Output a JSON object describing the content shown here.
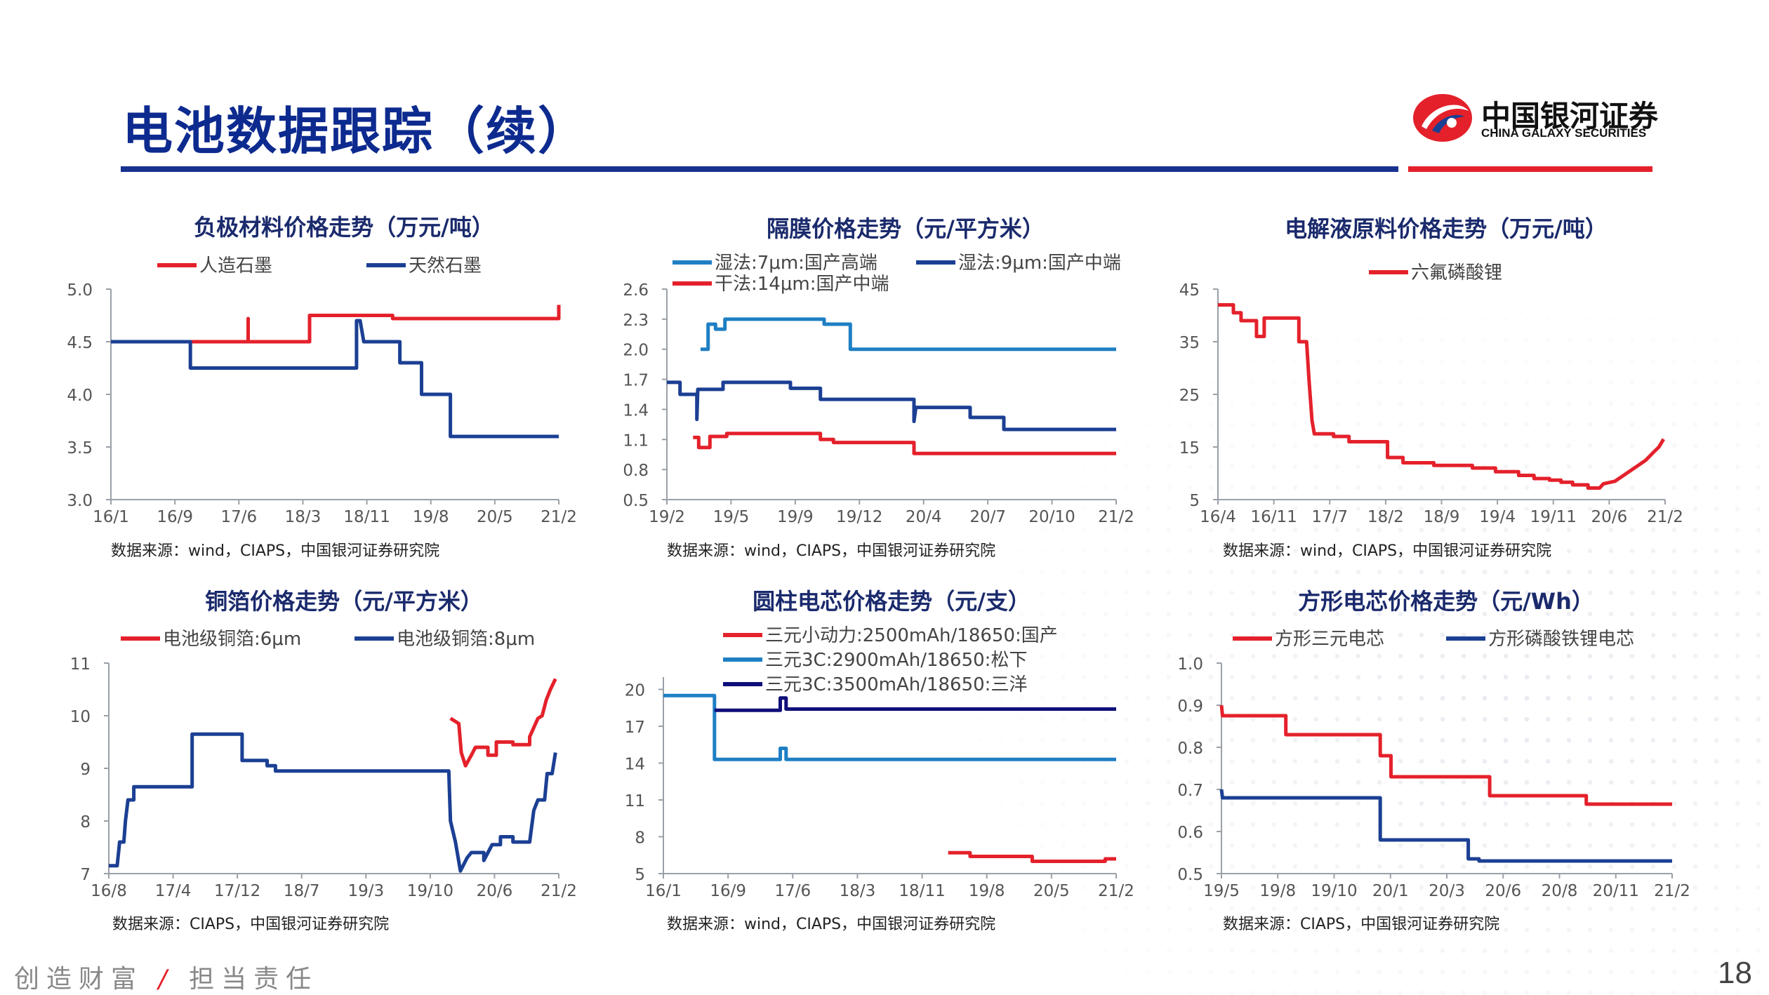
{
  "header": {
    "title": "电池数据跟踪（续）",
    "logo_cn": "中国银河证券",
    "logo_en": "CHINA GALAXY SECURITIES"
  },
  "footer": {
    "slogan_left": "创造财富",
    "slogan_sep": "/",
    "slogan_right": "担当责任",
    "page_number": "18"
  },
  "colors": {
    "red": "#e4212b",
    "darkblue": "#1b3f93",
    "lightblue": "#1e7fc4",
    "navy": "#0f0f7a",
    "brand_blue": "#17318f"
  },
  "chart_data": [
    {
      "id": "anode",
      "type": "line",
      "title": "负极材料价格走势（万元/吨）",
      "source": "数据来源：wind，CIAPS，中国银河证券研究院",
      "x_ticks": [
        "16/1",
        "16/9",
        "17/6",
        "18/3",
        "18/11",
        "19/8",
        "20/5",
        "21/2"
      ],
      "y_ticks": [
        "3.0",
        "3.5",
        "4.0",
        "4.5",
        "5.0"
      ],
      "ylim": [
        3.0,
        5.0
      ],
      "xlim": [
        0,
        62
      ],
      "series": [
        {
          "name": "人造石墨",
          "color": "#e4212b",
          "points": [
            [
              7,
              4.5
            ],
            [
              19,
              4.5
            ],
            [
              19,
              4.72
            ],
            [
              19,
              4.5
            ],
            [
              27.5,
              4.5
            ],
            [
              27.5,
              4.75
            ],
            [
              39,
              4.75
            ],
            [
              39,
              4.72
            ],
            [
              62,
              4.72
            ],
            [
              62,
              4.85
            ]
          ]
        },
        {
          "name": "天然石墨",
          "color": "#1b3f93",
          "points": [
            [
              0,
              4.5
            ],
            [
              11,
              4.5
            ],
            [
              11,
              4.25
            ],
            [
              34,
              4.25
            ],
            [
              34,
              4.7
            ],
            [
              34.5,
              4.7
            ],
            [
              35,
              4.5
            ],
            [
              40,
              4.5
            ],
            [
              40,
              4.3
            ],
            [
              43,
              4.3
            ],
            [
              43,
              4.0
            ],
            [
              47,
              4.0
            ],
            [
              47,
              3.6
            ],
            [
              62,
              3.6
            ]
          ]
        }
      ]
    },
    {
      "id": "separator",
      "type": "line",
      "title": "隔膜价格走势（元/平方米）",
      "source": "数据来源：wind，CIAPS，中国银河证券研究院",
      "x_ticks": [
        "19/2",
        "19/5",
        "19/9",
        "19/12",
        "20/4",
        "20/7",
        "20/10",
        "21/2"
      ],
      "y_ticks": [
        "0.5",
        "0.8",
        "1.1",
        "1.4",
        "1.7",
        "2.0",
        "2.3",
        "2.6"
      ],
      "ylim": [
        0.5,
        2.6
      ],
      "xlim": [
        0,
        24
      ],
      "series": [
        {
          "name": "湿法:7μm:国产高端",
          "color": "#1e7fc4",
          "points": [
            [
              1.8,
              2.0
            ],
            [
              2.2,
              2.0
            ],
            [
              2.2,
              2.25
            ],
            [
              2.6,
              2.25
            ],
            [
              2.6,
              2.2
            ],
            [
              3.1,
              2.2
            ],
            [
              3.1,
              2.3
            ],
            [
              8.4,
              2.3
            ],
            [
              8.4,
              2.25
            ],
            [
              9.8,
              2.25
            ],
            [
              9.8,
              2.0
            ],
            [
              24,
              2.0
            ]
          ]
        },
        {
          "name": "湿法:9μm:国产中端",
          "color": "#1b3f93",
          "points": [
            [
              0,
              1.67
            ],
            [
              0.7,
              1.67
            ],
            [
              0.7,
              1.55
            ],
            [
              1.6,
              1.55
            ],
            [
              1.6,
              1.3
            ],
            [
              1.65,
              1.6
            ],
            [
              3,
              1.6
            ],
            [
              3,
              1.67
            ],
            [
              6.6,
              1.67
            ],
            [
              6.6,
              1.61
            ],
            [
              8.2,
              1.61
            ],
            [
              8.2,
              1.5
            ],
            [
              13.2,
              1.5
            ],
            [
              13.2,
              1.28
            ],
            [
              13.3,
              1.42
            ],
            [
              16.2,
              1.42
            ],
            [
              16.2,
              1.32
            ],
            [
              18,
              1.32
            ],
            [
              18,
              1.2
            ],
            [
              24,
              1.2
            ]
          ]
        },
        {
          "name": "干法:14μm:国产中端",
          "color": "#e4212b",
          "points": [
            [
              1.4,
              1.12
            ],
            [
              1.7,
              1.12
            ],
            [
              1.7,
              1.02
            ],
            [
              2.3,
              1.02
            ],
            [
              2.3,
              1.13
            ],
            [
              3.2,
              1.13
            ],
            [
              3.2,
              1.16
            ],
            [
              8.2,
              1.16
            ],
            [
              8.2,
              1.1
            ],
            [
              8.9,
              1.1
            ],
            [
              8.9,
              1.07
            ],
            [
              13.2,
              1.07
            ],
            [
              13.2,
              0.96
            ],
            [
              24,
              0.96
            ]
          ]
        }
      ]
    },
    {
      "id": "electrolyte",
      "type": "line",
      "title": "电解液原料价格走势（万元/吨）",
      "source": "数据来源：wind，CIAPS，中国银河证券研究院",
      "x_ticks": [
        "16/4",
        "16/11",
        "17/7",
        "18/2",
        "18/9",
        "19/4",
        "19/11",
        "20/6",
        "21/2"
      ],
      "y_ticks": [
        "5",
        "15",
        "25",
        "35",
        "45"
      ],
      "ylim": [
        5,
        45
      ],
      "xlim": [
        0,
        58
      ],
      "series": [
        {
          "name": "六氟磷酸锂",
          "color": "#e4212b",
          "points": [
            [
              0,
              42
            ],
            [
              2,
              42
            ],
            [
              2,
              40.5
            ],
            [
              3,
              40.5
            ],
            [
              3,
              39
            ],
            [
              5,
              39
            ],
            [
              5,
              36
            ],
            [
              6,
              36
            ],
            [
              6,
              39.5
            ],
            [
              10.5,
              39.5
            ],
            [
              10.5,
              35
            ],
            [
              11.5,
              35
            ],
            [
              11.8,
              28
            ],
            [
              12.2,
              20
            ],
            [
              12.5,
              17.5
            ],
            [
              15,
              17.5
            ],
            [
              15,
              17
            ],
            [
              17,
              17
            ],
            [
              17,
              16
            ],
            [
              22,
              16
            ],
            [
              22,
              13
            ],
            [
              24,
              13
            ],
            [
              24,
              12
            ],
            [
              28,
              12
            ],
            [
              28,
              11.5
            ],
            [
              33,
              11.5
            ],
            [
              33,
              11
            ],
            [
              36,
              11
            ],
            [
              36,
              10.3
            ],
            [
              39,
              10.3
            ],
            [
              39,
              9.6
            ],
            [
              41,
              9.6
            ],
            [
              41,
              9
            ],
            [
              43,
              9
            ],
            [
              43,
              8.7
            ],
            [
              44.5,
              8.7
            ],
            [
              44.5,
              8.3
            ],
            [
              46,
              8.3
            ],
            [
              46,
              7.8
            ],
            [
              48,
              7.8
            ],
            [
              48,
              7.2
            ],
            [
              49.5,
              7.2
            ],
            [
              50,
              8
            ],
            [
              51.5,
              8.5
            ],
            [
              52.5,
              9.5
            ],
            [
              53.5,
              10.5
            ],
            [
              54.5,
              11.5
            ],
            [
              55.5,
              12.5
            ],
            [
              56.5,
              14
            ],
            [
              57.2,
              15
            ],
            [
              57.8,
              16.5
            ]
          ]
        }
      ]
    },
    {
      "id": "copper_foil",
      "type": "line",
      "title": "铜箔价格走势（元/平方米）",
      "source": "数据来源：CIAPS，中国银河证券研究院",
      "x_ticks": [
        "16/8",
        "17/4",
        "17/12",
        "18/7",
        "19/3",
        "19/10",
        "20/6",
        "21/2"
      ],
      "y_ticks": [
        "7",
        "8",
        "9",
        "10",
        "11"
      ],
      "ylim": [
        7,
        11
      ],
      "xlim": [
        0,
        54
      ],
      "series": [
        {
          "name": "电池级铜箔:6μm",
          "color": "#e4212b",
          "points": [
            [
              41,
              9.95
            ],
            [
              42,
              9.85
            ],
            [
              42.3,
              9.3
            ],
            [
              42.8,
              9.05
            ],
            [
              43.5,
              9.25
            ],
            [
              44,
              9.4
            ],
            [
              45.5,
              9.4
            ],
            [
              45.5,
              9.25
            ],
            [
              46.5,
              9.25
            ],
            [
              46.5,
              9.5
            ],
            [
              48.5,
              9.5
            ],
            [
              48.5,
              9.45
            ],
            [
              50.5,
              9.45
            ],
            [
              50.5,
              9.6
            ],
            [
              51.5,
              9.95
            ],
            [
              52,
              10.0
            ],
            [
              52.5,
              10.3
            ],
            [
              53,
              10.5
            ],
            [
              53.6,
              10.7
            ]
          ]
        },
        {
          "name": "电池级铜箔:8μm",
          "color": "#1b3f93",
          "points": [
            [
              0,
              7.15
            ],
            [
              1,
              7.15
            ],
            [
              1.3,
              7.6
            ],
            [
              1.8,
              7.6
            ],
            [
              2,
              8.0
            ],
            [
              2.3,
              8.4
            ],
            [
              3,
              8.4
            ],
            [
              3,
              8.65
            ],
            [
              10,
              8.65
            ],
            [
              10,
              9.65
            ],
            [
              16,
              9.65
            ],
            [
              16,
              9.15
            ],
            [
              19,
              9.15
            ],
            [
              19,
              9.05
            ],
            [
              20,
              9.05
            ],
            [
              20,
              8.95
            ],
            [
              36,
              8.95
            ],
            [
              36,
              8.95
            ],
            [
              40.8,
              8.95
            ],
            [
              41,
              8.0
            ],
            [
              41.6,
              7.6
            ],
            [
              42.2,
              7.05
            ],
            [
              43,
              7.3
            ],
            [
              43.5,
              7.4
            ],
            [
              45,
              7.4
            ],
            [
              45,
              7.25
            ],
            [
              46,
              7.55
            ],
            [
              47,
              7.55
            ],
            [
              47,
              7.7
            ],
            [
              48.5,
              7.7
            ],
            [
              48.5,
              7.6
            ],
            [
              50.5,
              7.6
            ],
            [
              51,
              8.2
            ],
            [
              51.5,
              8.4
            ],
            [
              52.3,
              8.4
            ],
            [
              52.6,
              8.9
            ],
            [
              53.2,
              8.9
            ],
            [
              53.6,
              9.3
            ]
          ]
        }
      ]
    },
    {
      "id": "cylindrical_cell",
      "type": "line",
      "title": "圆柱电芯价格走势（元/支）",
      "source": "数据来源：wind，CIAPS，中国银河证券研究院",
      "x_ticks": [
        "16/1",
        "16/9",
        "17/6",
        "18/3",
        "18/11",
        "19/8",
        "20/5",
        "21/2"
      ],
      "y_ticks": [
        "5",
        "8",
        "11",
        "14",
        "17",
        "20"
      ],
      "ylim": [
        5,
        21
      ],
      "xlim": [
        0,
        62
      ],
      "series": [
        {
          "name": "三元小动力:2500mAh/18650:国产",
          "color": "#e4212b",
          "points": [
            [
              39,
              6.7
            ],
            [
              42,
              6.7
            ],
            [
              42,
              6.4
            ],
            [
              50.5,
              6.4
            ],
            [
              50.5,
              6.0
            ],
            [
              60.5,
              6.0
            ],
            [
              60.5,
              6.2
            ],
            [
              62,
              6.2
            ]
          ]
        },
        {
          "name": "三元3C:2900mAh/18650:松下",
          "color": "#1e7fc4",
          "points": [
            [
              0,
              19.5
            ],
            [
              7,
              19.5
            ],
            [
              7,
              14.3
            ],
            [
              16,
              14.3
            ],
            [
              16,
              15.2
            ],
            [
              16.8,
              15.2
            ],
            [
              16.8,
              14.3
            ],
            [
              62,
              14.3
            ]
          ]
        },
        {
          "name": "三元3C:3500mAh/18650:三洋",
          "color": "#0f0f7a",
          "points": [
            [
              7,
              18.3
            ],
            [
              16,
              18.3
            ],
            [
              16,
              19.3
            ],
            [
              16.8,
              19.3
            ],
            [
              16.8,
              18.4
            ],
            [
              62,
              18.4
            ]
          ]
        }
      ]
    },
    {
      "id": "prismatic_cell",
      "type": "line",
      "title": "方形电芯价格走势（元/Wh）",
      "source": "数据来源：CIAPS，中国银河证券研究院",
      "x_ticks": [
        "19/5",
        "19/8",
        "19/10",
        "20/1",
        "20/3",
        "20/6",
        "20/8",
        "20/11",
        "21/2"
      ],
      "y_ticks": [
        "0.5",
        "0.6",
        "0.7",
        "0.8",
        "0.9",
        "1.0"
      ],
      "ylim": [
        0.5,
        1.0
      ],
      "xlim": [
        0,
        21
      ],
      "series": [
        {
          "name": "方形三元电芯",
          "color": "#e4212b",
          "points": [
            [
              0,
              0.9
            ],
            [
              0.05,
              0.875
            ],
            [
              3,
              0.875
            ],
            [
              3,
              0.83
            ],
            [
              7.4,
              0.83
            ],
            [
              7.4,
              0.78
            ],
            [
              7.9,
              0.78
            ],
            [
              7.9,
              0.73
            ],
            [
              12.5,
              0.73
            ],
            [
              12.5,
              0.685
            ],
            [
              17,
              0.685
            ],
            [
              17,
              0.665
            ],
            [
              21,
              0.665
            ]
          ]
        },
        {
          "name": "方形磷酸铁锂电芯",
          "color": "#1b3f93",
          "points": [
            [
              0,
              0.7
            ],
            [
              0.05,
              0.68
            ],
            [
              7.4,
              0.68
            ],
            [
              7.4,
              0.58
            ],
            [
              11.5,
              0.58
            ],
            [
              11.5,
              0.535
            ],
            [
              12,
              0.535
            ],
            [
              12,
              0.53
            ],
            [
              21,
              0.53
            ]
          ]
        }
      ]
    }
  ]
}
